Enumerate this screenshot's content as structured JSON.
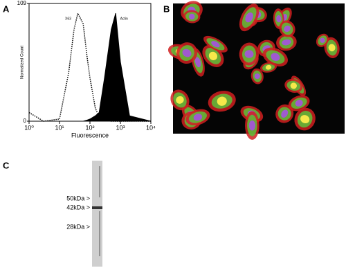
{
  "chart_data": {
    "type": "line",
    "xlabel": "Fluorescence",
    "ylabel": "Normalized Count",
    "log_x": true,
    "x": [
      1,
      3,
      10,
      20,
      30,
      40,
      60,
      80,
      100,
      150,
      200,
      300,
      500,
      700,
      1000,
      2000,
      10000
    ],
    "series": [
      {
        "name": "X63",
        "color": "#000000",
        "style": "dotted",
        "values": [
          8,
          0,
          2,
          45,
          85,
          100,
          90,
          60,
          40,
          12,
          4,
          1,
          0,
          0,
          0,
          0,
          0
        ]
      },
      {
        "name": "Actin",
        "color": "#000000",
        "style": "filled",
        "values": [
          0,
          0,
          0,
          0,
          0,
          0,
          0,
          1,
          2,
          5,
          8,
          40,
          85,
          100,
          55,
          5,
          0
        ]
      }
    ],
    "xlim": [
      1,
      10000
    ],
    "xticks": [
      {
        "value": 1,
        "label": "10⁰"
      },
      {
        "value": 10,
        "label": "10¹"
      },
      {
        "value": 100,
        "label": "10²"
      },
      {
        "value": 1000,
        "label": "10³"
      },
      {
        "value": 10000,
        "label": "10⁴"
      }
    ],
    "ylim": [
      0,
      109
    ],
    "yticks": [
      0,
      109
    ]
  },
  "panels": {
    "a": "A",
    "b": "B",
    "c": "C"
  },
  "blot_markers": [
    "50kDa >",
    "42kDa >",
    "28kDa >"
  ]
}
